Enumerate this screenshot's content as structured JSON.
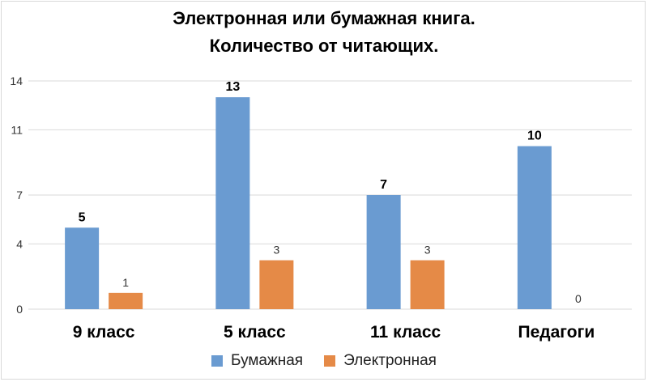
{
  "chart_data": {
    "type": "bar",
    "title": "Электронная или бумажная книга.",
    "subtitle": "Количество от читающих.",
    "categories": [
      "9 класс",
      "5 класс",
      "11 класс",
      "Педагоги"
    ],
    "series": [
      {
        "name": "Бумажная",
        "values": [
          5,
          13,
          7,
          10
        ],
        "color": "#6a9bd1",
        "labels": [
          "5",
          "13",
          "7",
          "10"
        ]
      },
      {
        "name": "Электронная",
        "values": [
          1,
          3,
          3,
          0
        ],
        "color": "#e58a47",
        "labels": [
          "1",
          "3",
          "3",
          "0"
        ]
      }
    ],
    "ytick_labels": [
      "0",
      "4",
      "7",
      "11",
      "14"
    ],
    "ylim": [
      0,
      14
    ],
    "grid": true,
    "legend_position": "bottom"
  }
}
